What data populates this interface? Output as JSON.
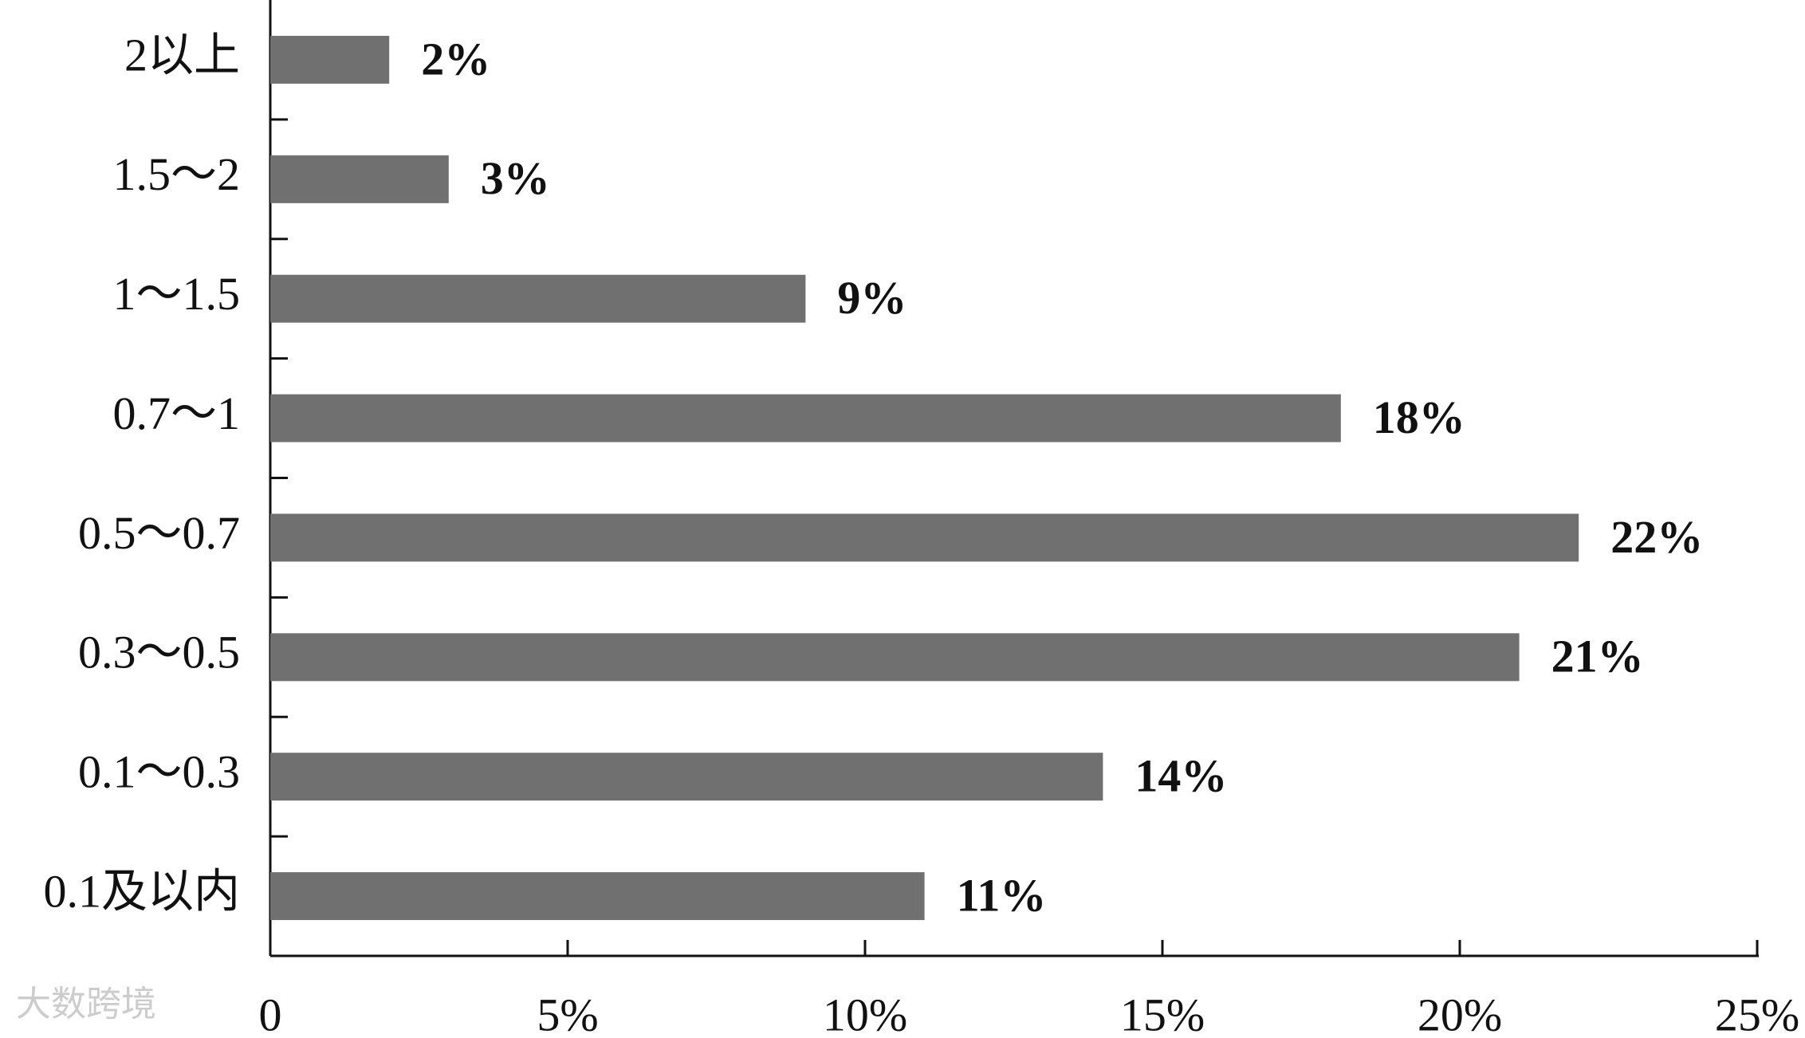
{
  "chart_data": {
    "type": "hbar",
    "categories": [
      "2以上",
      "1.5～2",
      "1～1.5",
      "0.7～1",
      "0.5～0.7",
      "0.3～0.5",
      "0.1～0.3",
      "0.1及以内"
    ],
    "values": [
      2,
      3,
      9,
      18,
      22,
      21,
      14,
      11
    ],
    "value_labels": [
      "2%",
      "3%",
      "9%",
      "18%",
      "22%",
      "21%",
      "14%",
      "11%"
    ],
    "color": "#707070",
    "xlim": [
      0,
      25
    ],
    "xticks": [
      0,
      {
        "value": 5,
        "label": "5%"
      },
      {
        "value": 10,
        "label": "10%"
      },
      {
        "value": 15,
        "label": "15%"
      },
      {
        "value": 20,
        "label": "20%"
      },
      {
        "value": 25,
        "label": "25%"
      }
    ],
    "watermark": "大数跨境"
  }
}
